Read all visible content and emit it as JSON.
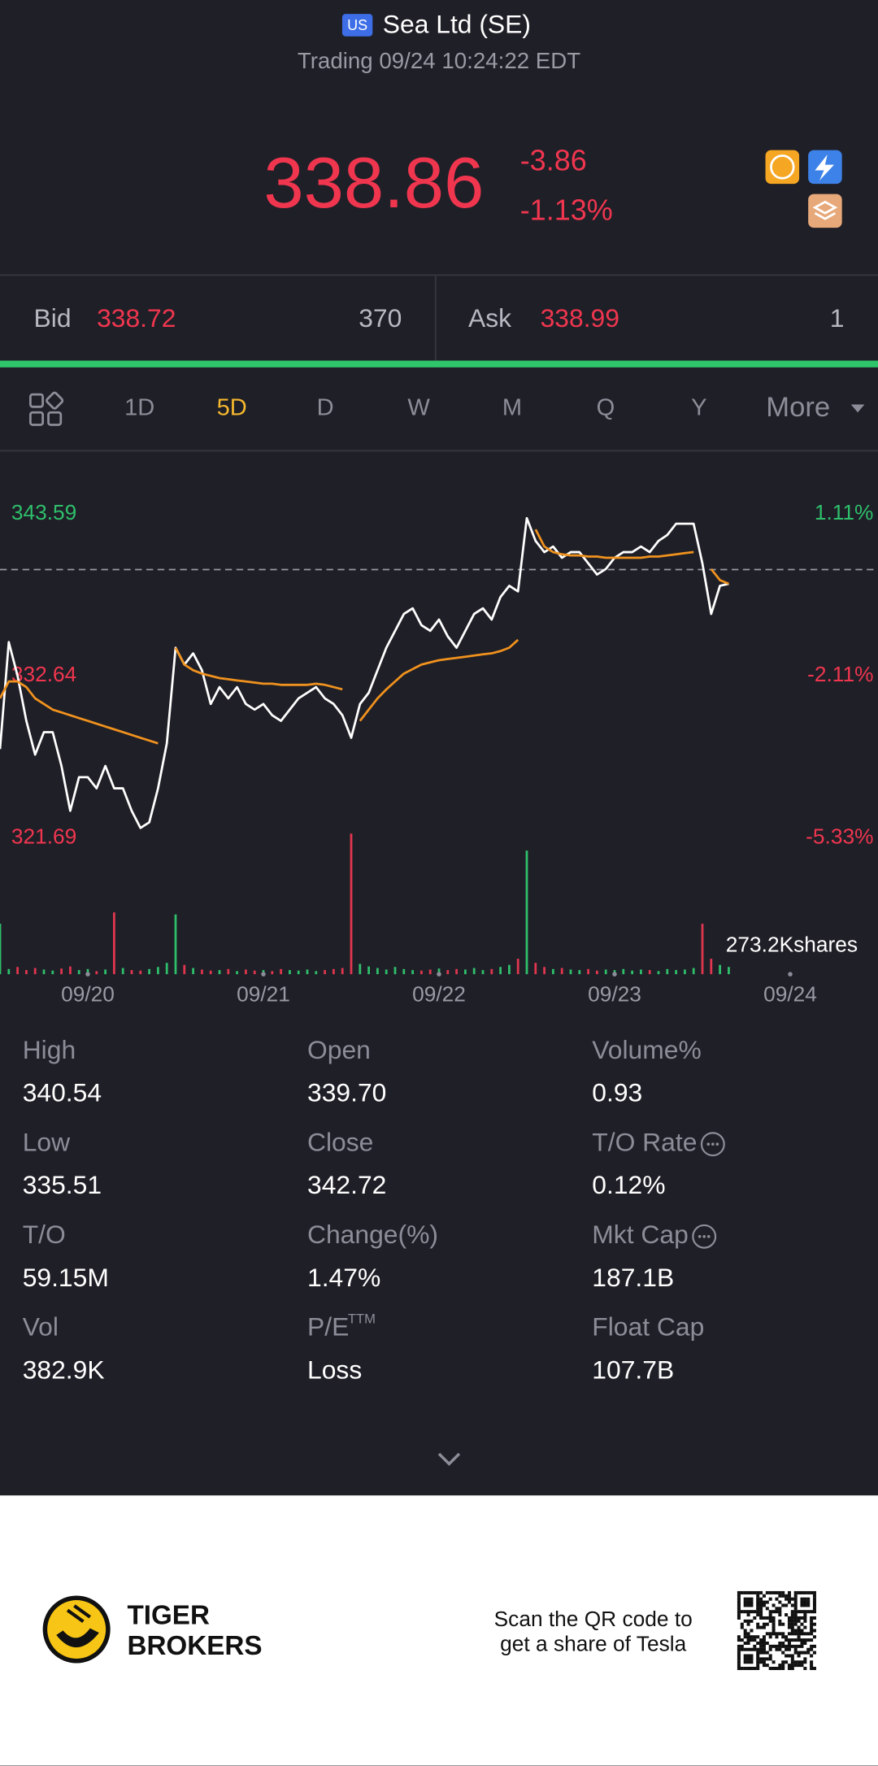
{
  "header": {
    "market": "US",
    "title": "Sea Ltd (SE)",
    "status": "Trading 09/24 10:24:22 EDT"
  },
  "quote": {
    "price": 338.86,
    "change": -3.86,
    "change_percent": "-1.13%"
  },
  "order_book": {
    "bid_label": "Bid",
    "bid_price": 338.72,
    "bid_size": 370,
    "ask_label": "Ask",
    "ask_price": 338.99,
    "ask_size": 1
  },
  "tabs": {
    "items": [
      "1D",
      "5D",
      "D",
      "W",
      "M",
      "Q",
      "Y",
      "More"
    ],
    "active": 1
  },
  "chart_data": {
    "type": "line",
    "x": [
      0,
      1,
      2,
      3,
      4,
      5,
      6,
      7,
      8,
      9,
      10,
      11,
      12,
      13,
      14,
      15,
      16,
      17,
      18,
      19,
      20,
      21,
      22,
      23,
      24,
      25,
      26,
      27,
      28,
      29,
      30,
      31,
      32,
      33,
      34,
      35,
      36,
      37,
      38,
      39,
      40,
      41,
      42,
      43,
      44,
      45,
      46,
      47,
      48,
      49,
      50,
      51,
      52,
      53,
      54,
      55,
      56,
      57,
      58,
      59,
      60,
      61,
      62,
      63,
      64,
      65,
      66,
      67,
      68,
      69,
      70,
      71,
      72,
      73,
      74,
      75,
      76,
      77,
      78,
      79,
      80,
      81,
      82,
      83
    ],
    "xlim": [
      0,
      100
    ],
    "xticks": [
      {
        "value": 10,
        "label": "09/20"
      },
      {
        "value": 30,
        "label": "09/21"
      },
      {
        "value": 50,
        "label": "09/22"
      },
      {
        "value": 70,
        "label": "09/23"
      },
      {
        "value": 90,
        "label": "09/24"
      }
    ],
    "ylim": [
      321.69,
      343.59
    ],
    "yticks": [
      343.59,
      332.64,
      321.69
    ],
    "y2lim": [
      -5.33,
      1.11
    ],
    "y2ticks": [
      {
        "value": 1.11,
        "label": "1.11%"
      },
      {
        "value": -2.11,
        "label": "-2.11%"
      },
      {
        "value": -5.33,
        "label": "-5.33%"
      }
    ],
    "reference_line": 339.82,
    "series": [
      {
        "color": "#ffffff",
        "values": [
          327.7,
          334.92,
          332.64,
          329.6,
          327.32,
          328.84,
          328.84,
          326.56,
          323.52,
          325.8,
          325.8,
          325.04,
          326.56,
          325.04,
          325.04,
          323.52,
          322.37,
          322.75,
          325.04,
          328.08,
          334.54,
          333.4,
          334.16,
          333.02,
          330.74,
          331.88,
          331.12,
          331.88,
          330.74,
          330.36,
          330.74,
          329.98,
          329.6,
          330.36,
          331.12,
          331.5,
          331.88,
          331.12,
          330.74,
          329.98,
          328.46,
          330.74,
          331.5,
          333.02,
          334.54,
          335.68,
          336.82,
          337.2,
          336.06,
          335.68,
          336.44,
          335.3,
          334.54,
          335.68,
          336.82,
          337.2,
          336.44,
          337.96,
          338.72,
          338.34,
          343.29,
          341.76,
          341.0,
          341.38,
          340.62,
          341.0,
          341.0,
          340.24,
          339.48,
          339.86,
          340.62,
          341.0,
          341.0,
          341.38,
          341.0,
          341.76,
          342.15,
          342.91,
          342.91,
          342.91,
          340.24,
          336.82,
          338.72,
          338.86
        ]
      },
      {
        "color": "#f0921e",
        "values": [
          331.12,
          332.26,
          332.26,
          331.88,
          331.12,
          330.74,
          330.36,
          330.17,
          329.98,
          329.79,
          329.6,
          329.41,
          329.22,
          329.03,
          328.84,
          328.65,
          328.46,
          328.27,
          328.08,
          null,
          334.54,
          333.4,
          333.02,
          332.79,
          332.64,
          332.49,
          332.41,
          332.33,
          332.26,
          332.18,
          332.11,
          332.11,
          332.03,
          332.03,
          332.03,
          332.03,
          332.11,
          332.03,
          331.88,
          331.73,
          null,
          329.6,
          330.36,
          331.12,
          331.73,
          332.26,
          332.79,
          333.1,
          333.4,
          333.55,
          333.7,
          333.78,
          333.86,
          333.93,
          334.01,
          334.09,
          334.16,
          334.31,
          334.54,
          335.07,
          null,
          342.53,
          341.38,
          341.0,
          340.85,
          340.78,
          340.78,
          340.7,
          340.7,
          340.62,
          340.62,
          340.62,
          340.62,
          340.62,
          340.7,
          340.7,
          340.78,
          340.85,
          340.93,
          341.0,
          null,
          339.86,
          339.1,
          338.86
        ]
      }
    ],
    "volume": {
      "values": [
        98,
        10,
        14,
        8,
        12,
        9,
        7,
        11,
        15,
        8,
        10,
        6,
        9,
        120,
        12,
        8,
        7,
        10,
        14,
        22,
        116,
        18,
        12,
        9,
        7,
        8,
        10,
        6,
        9,
        7,
        8,
        6,
        10,
        8,
        7,
        9,
        6,
        8,
        10,
        12,
        273,
        20,
        15,
        12,
        9,
        14,
        10,
        8,
        7,
        9,
        11,
        8,
        10,
        9,
        12,
        8,
        10,
        14,
        18,
        30,
        240,
        22,
        14,
        10,
        12,
        9,
        8,
        10,
        7,
        9,
        8,
        10,
        7,
        9,
        8,
        6,
        10,
        8,
        9,
        12,
        98,
        30,
        18,
        14
      ],
      "ylim": [
        0,
        273.2
      ],
      "yticks": [
        {
          "value": 273.2,
          "label": "273.2Kshares"
        }
      ],
      "up_color": "#2fbf6b",
      "down_color": "#e0364f"
    }
  },
  "stats": [
    {
      "label": "High",
      "value": "340.54"
    },
    {
      "label": "Open",
      "value": "339.70"
    },
    {
      "label": "Volume%",
      "value": "0.93"
    },
    {
      "label": "Low",
      "value": "335.51"
    },
    {
      "label": "Close",
      "value": "342.72"
    },
    {
      "label": "T/O Rate",
      "value": "0.12%",
      "info": true
    },
    {
      "label": "T/O",
      "value": "59.15M"
    },
    {
      "label": "Change(%)",
      "value": "1.47%"
    },
    {
      "label": "Mkt Cap",
      "value": "187.1B",
      "info": true
    },
    {
      "label": "Vol",
      "value": "382.9K"
    },
    {
      "label": "P/E",
      "sup": "TTM",
      "value": "Loss"
    },
    {
      "label": "Float Cap",
      "value": "107.7B"
    }
  ],
  "footer": {
    "brand": [
      "TIGER",
      "BROKERS"
    ],
    "promo": [
      "Scan the QR code to",
      "get a share of Tesla"
    ]
  }
}
